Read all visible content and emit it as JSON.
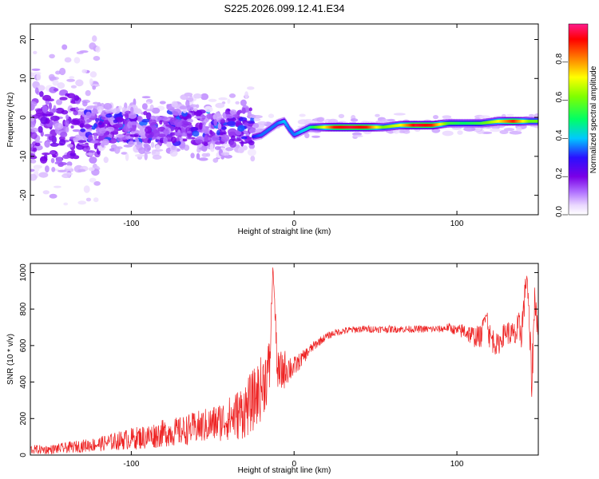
{
  "chart_data": [
    {
      "type": "heatmap",
      "title": "S225.2026.099.12.41.E34",
      "xlabel": "Height of straight line (km)",
      "ylabel": "Frequency (Hz)",
      "xlim": [
        -162,
        150
      ],
      "ylim": [
        -25,
        24
      ],
      "xticks": [
        -100,
        0,
        100
      ],
      "yticks": [
        20,
        10,
        0,
        -10,
        -20
      ],
      "colorbar": {
        "label": "Normalized spectral amplitude",
        "range": [
          0,
          1
        ],
        "ticks": [
          "0.0",
          "0.2",
          "0.4",
          "0.6",
          "0.8"
        ],
        "tick_values": [
          0,
          0.2,
          0.4,
          0.6,
          0.8
        ]
      },
      "ridge": [
        {
          "x": -25,
          "y": -5,
          "amp": 0.3
        },
        {
          "x": -20,
          "y": -4.5,
          "amp": 0.35
        },
        {
          "x": -15,
          "y": -3,
          "amp": 0.35
        },
        {
          "x": -10,
          "y": -1.5,
          "amp": 0.35
        },
        {
          "x": -6,
          "y": -1,
          "amp": 0.4
        },
        {
          "x": -3,
          "y": -3,
          "amp": 0.35
        },
        {
          "x": 0,
          "y": -4.5,
          "amp": 0.35
        },
        {
          "x": 5,
          "y": -3.5,
          "amp": 0.4
        },
        {
          "x": 10,
          "y": -2.5,
          "amp": 0.45
        },
        {
          "x": 15,
          "y": -2.5,
          "amp": 0.6
        },
        {
          "x": 25,
          "y": -2.5,
          "amp": 0.9
        },
        {
          "x": 35,
          "y": -2.5,
          "amp": 0.95
        },
        {
          "x": 45,
          "y": -2.5,
          "amp": 0.9
        },
        {
          "x": 55,
          "y": -2.5,
          "amp": 0.6
        },
        {
          "x": 65,
          "y": -2,
          "amp": 0.7
        },
        {
          "x": 75,
          "y": -2,
          "amp": 0.95
        },
        {
          "x": 85,
          "y": -2,
          "amp": 0.9
        },
        {
          "x": 95,
          "y": -1.5,
          "amp": 0.55
        },
        {
          "x": 105,
          "y": -1.5,
          "amp": 0.5
        },
        {
          "x": 115,
          "y": -1.5,
          "amp": 0.55
        },
        {
          "x": 125,
          "y": -1,
          "amp": 0.7
        },
        {
          "x": 135,
          "y": -1,
          "amp": 0.9
        },
        {
          "x": 145,
          "y": -1,
          "amp": 0.6
        }
      ]
    },
    {
      "type": "line",
      "xlabel": "Height of straight line (km)",
      "ylabel": "SNR (10 * v/v)",
      "xlim": [
        -162,
        150
      ],
      "ylim": [
        0,
        1050
      ],
      "xticks": [
        -100,
        0,
        100
      ],
      "yticks": [
        0,
        200,
        400,
        600,
        800,
        1000
      ],
      "color": "#ee2222",
      "series": [
        {
          "name": "SNR",
          "x": [
            -162,
            -150,
            -140,
            -130,
            -120,
            -110,
            -100,
            -90,
            -80,
            -70,
            -60,
            -50,
            -40,
            -35,
            -30,
            -25,
            -20,
            -15,
            -13,
            -10,
            -5,
            0,
            5,
            10,
            15,
            20,
            25,
            30,
            40,
            50,
            60,
            70,
            80,
            90,
            95,
            100,
            105,
            110,
            115,
            118,
            120,
            125,
            130,
            135,
            140,
            143,
            146,
            148,
            150
          ],
          "y": [
            30,
            30,
            40,
            50,
            60,
            75,
            90,
            100,
            120,
            130,
            150,
            170,
            200,
            220,
            250,
            300,
            370,
            480,
            1040,
            430,
            480,
            480,
            530,
            580,
            620,
            650,
            670,
            680,
            690,
            690,
            690,
            690,
            690,
            690,
            700,
            680,
            680,
            650,
            650,
            800,
            650,
            600,
            680,
            650,
            700,
            1000,
            400,
            900,
            620
          ],
          "amplitude": [
            25,
            25,
            30,
            35,
            40,
            50,
            60,
            70,
            75,
            80,
            90,
            100,
            120,
            140,
            160,
            170,
            180,
            170,
            0,
            140,
            100,
            60,
            40,
            30,
            25,
            20,
            20,
            20,
            20,
            20,
            20,
            20,
            20,
            20,
            25,
            30,
            50,
            60,
            60,
            40,
            80,
            60,
            60,
            80,
            120,
            50,
            120,
            120,
            80
          ]
        }
      ]
    }
  ]
}
